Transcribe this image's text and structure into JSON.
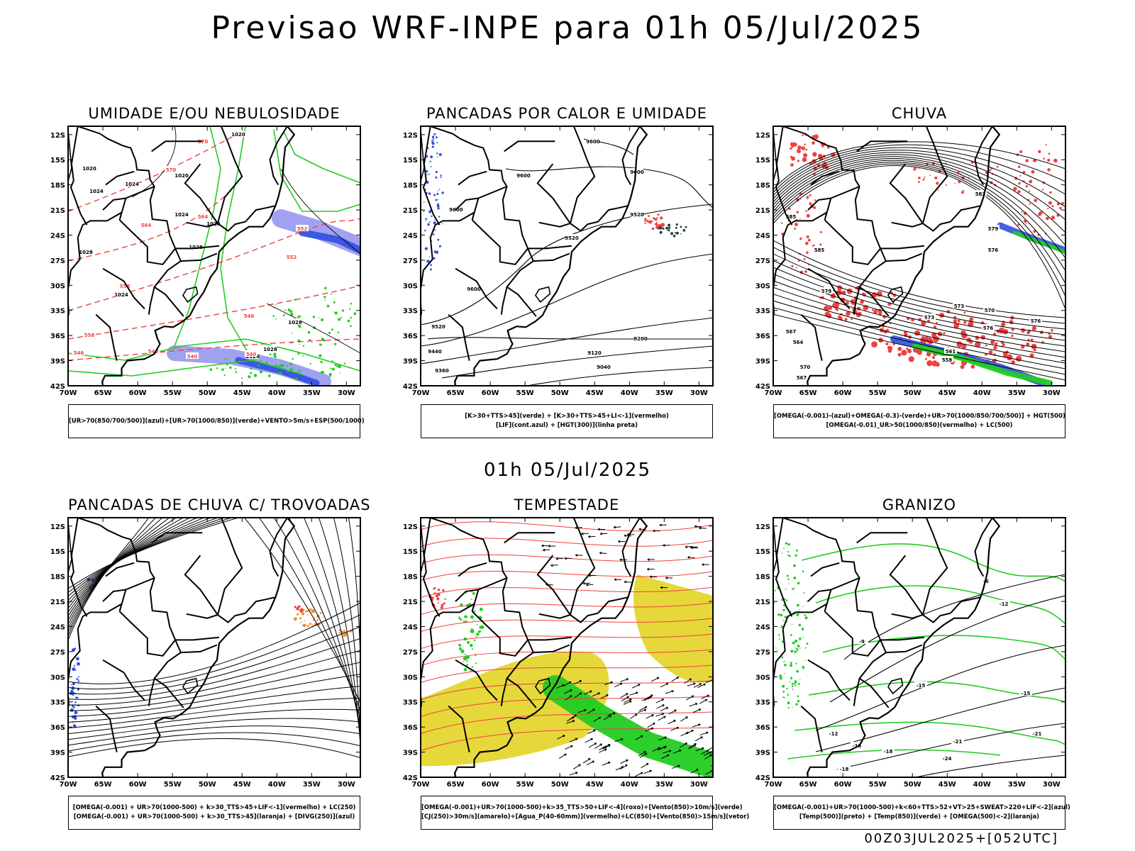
{
  "title": "Previsao WRF-INPE  para 01h 05/Jul/2025",
  "mid_title": "01h 05/Jul/2025",
  "footer": "00Z03JUL2025+[052UTC]",
  "lat_labels": [
    "12S",
    "15S",
    "18S",
    "21S",
    "24S",
    "27S",
    "30S",
    "33S",
    "36S",
    "39S",
    "42S"
  ],
  "lon_labels": [
    "70W",
    "65W",
    "60W",
    "55W",
    "50W",
    "45W",
    "40W",
    "35W",
    "30W"
  ],
  "panels": [
    {
      "title": "UMIDADE E/OU NEBULOSIDADE",
      "legend": [
        "[UR>70(850/700/500)](azul)+[UR>70(1000/850)](verde)+VENTO>5m/s+ESP(500/1000)"
      ],
      "contour_labels": [
        "1020",
        "1020",
        "1020",
        "1024",
        "1024",
        "1028",
        "1028",
        "1028",
        "1024",
        "1024",
        "1028",
        "1028",
        "1024",
        "570",
        "570",
        "564",
        "564",
        "558",
        "558",
        "552",
        "552",
        "546",
        "546",
        "540",
        "540",
        "540"
      ]
    },
    {
      "title": "PANCADAS POR CALOR E UMIDADE",
      "legend": [
        "[K>30+TTS>45](verde) + [K>30+TTS>45+LI<-1](vermelho)",
        "[LIF](cont.azul) + [HGT(300)](linha preta)"
      ],
      "contour_labels": [
        "9600",
        "9600",
        "9600",
        "9600",
        "9520",
        "9520",
        "9600",
        "9520",
        "9440",
        "9360",
        "9200",
        "9120",
        "9040"
      ]
    },
    {
      "title": "CHUVA",
      "legend": [
        "[OMEGA(-0.001)-(azul)+OMEGA(-0.3)-(verde)+UR>70(1000/850/700/500)] + HGT(500)",
        "[OMEGA(-0.01)_UR>50(1000/850)(vermelho) + LC(500)"
      ],
      "contour_labels": [
        "582",
        "579",
        "576",
        "585",
        "585",
        "579",
        "573",
        "570",
        "576",
        "567",
        "564",
        "561",
        "558",
        "573",
        "576",
        "570",
        "567"
      ]
    },
    {
      "title": "PANCADAS DE CHUVA C/ TROVOADAS",
      "legend": [
        "[OMEGA(-0.001) + UR>70(1000-500) + k>30_TTS>45+LIF<-1](vermelho) + LC(250)",
        "[OMEGA(-0.001) + UR>70(1000-500) + k>30_TTS>45](laranja) + [DIVG(250)](azul)"
      ],
      "contour_labels": []
    },
    {
      "title": "TEMPESTADE",
      "legend": [
        "[OMEGA(-0.001)+UR>70(1000-500)+k>35_TTS>50+LIF<-4](roxo)+[Vento(850)>10m/s](verde)",
        "[CJ(250)>30m/s](amarelo)+[Agua_P(40-60mm)](vermelho)+LC(850)+[Vento(850)>15m/s](vetor)"
      ],
      "contour_labels": []
    },
    {
      "title": "GRANIZO",
      "legend": [
        "[OMEGA(-0.001)+UR>70(1000-500)+k<60+TTS>52+VT>25+SWEAT>220+LIF<-2](azul)",
        "[Temp(500)](preto) + [Temp(850)](verde) + [OMEGA(500)<-2](laranja)"
      ],
      "contour_labels": [
        "-6",
        "-9",
        "-12",
        "-15",
        "-15",
        "-12",
        "-15",
        "-18",
        "-21",
        "-21",
        "-24",
        "-18"
      ]
    }
  ],
  "colors": {
    "blue": "#3050e0",
    "lightblue": "#9090ee",
    "green": "#22cc22",
    "red": "#f04040",
    "orange": "#f09030",
    "yellow": "#e6d83a",
    "black": "#000000"
  }
}
